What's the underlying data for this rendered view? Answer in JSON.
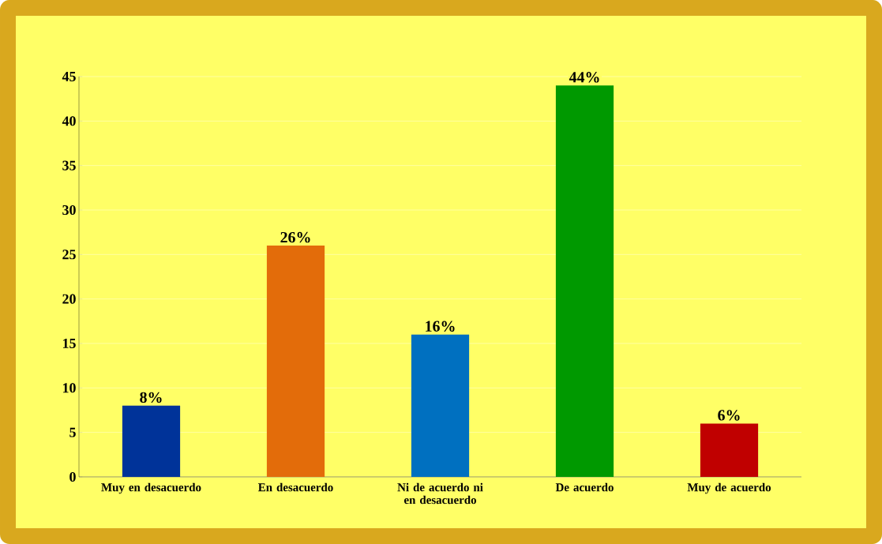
{
  "chart_data": {
    "type": "bar",
    "categories": [
      "Muy en desacuerdo",
      "En desacuerdo",
      "Ni de acuerdo ni en desacuerdo",
      "De acuerdo",
      "Muy de acuerdo"
    ],
    "values": [
      8,
      26,
      16,
      44,
      6
    ],
    "colors": [
      "#003399",
      "#e36c0a",
      "#0070c0",
      "#009900",
      "#c00000"
    ],
    "value_labels": [
      "8%",
      "26%",
      "16%",
      "44%",
      "6%"
    ],
    "ylim": [
      0,
      45
    ],
    "yticks": [
      0,
      5,
      10,
      15,
      20,
      25,
      30,
      35,
      40,
      45
    ],
    "grid": "y"
  }
}
